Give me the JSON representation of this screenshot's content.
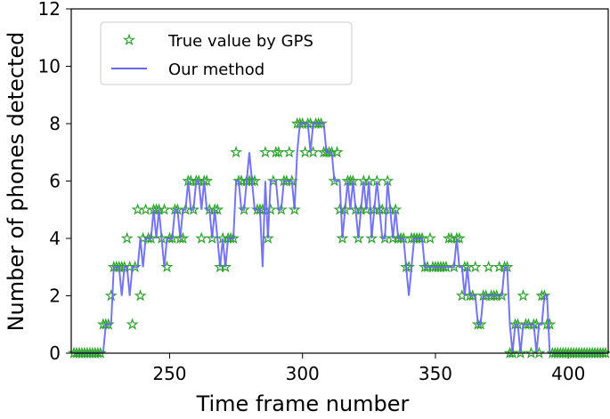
{
  "chart_data": {
    "type": "line",
    "xlabel": "Time frame number",
    "ylabel": "Number of phones detected",
    "x": [
      214,
      215,
      216,
      217,
      218,
      219,
      220,
      221,
      222,
      223,
      224,
      225,
      226,
      227,
      228,
      229,
      230,
      231,
      232,
      233,
      234,
      235,
      236,
      237,
      238,
      239,
      240,
      241,
      242,
      243,
      244,
      245,
      246,
      247,
      248,
      249,
      250,
      251,
      252,
      253,
      254,
      255,
      256,
      257,
      258,
      259,
      260,
      261,
      262,
      263,
      264,
      265,
      266,
      267,
      268,
      269,
      270,
      271,
      272,
      273,
      274,
      275,
      276,
      277,
      278,
      279,
      280,
      281,
      282,
      283,
      284,
      285,
      286,
      287,
      288,
      289,
      290,
      291,
      292,
      293,
      294,
      295,
      296,
      297,
      298,
      299,
      300,
      301,
      302,
      303,
      304,
      305,
      306,
      307,
      308,
      309,
      310,
      311,
      312,
      313,
      314,
      315,
      316,
      317,
      318,
      319,
      320,
      321,
      322,
      323,
      324,
      325,
      326,
      327,
      328,
      329,
      330,
      331,
      332,
      333,
      334,
      335,
      336,
      337,
      338,
      339,
      340,
      341,
      342,
      343,
      344,
      345,
      346,
      347,
      348,
      349,
      350,
      351,
      352,
      353,
      354,
      355,
      356,
      357,
      358,
      359,
      360,
      361,
      362,
      363,
      364,
      365,
      366,
      367,
      368,
      369,
      370,
      371,
      372,
      373,
      374,
      375,
      376,
      377,
      378,
      379,
      380,
      381,
      382,
      383,
      384,
      385,
      386,
      387,
      388,
      389,
      390,
      391,
      392,
      393,
      394,
      395,
      396,
      397,
      398,
      399,
      400,
      401,
      402,
      403,
      404,
      405,
      406,
      407,
      408,
      409,
      410,
      411,
      412,
      413,
      414
    ],
    "series": [
      {
        "name": "True value by GPS",
        "color": "#2ca02c",
        "marker": "star",
        "values": [
          0,
          0,
          0,
          0,
          0,
          0,
          0,
          0,
          0,
          0,
          0,
          1,
          1,
          1,
          2,
          3,
          3,
          3,
          3,
          3,
          4,
          3,
          1,
          3,
          5,
          2,
          4,
          5,
          4,
          4,
          5,
          5,
          5,
          4,
          5,
          3,
          4,
          4,
          5,
          5,
          4,
          4,
          5,
          6,
          6,
          5,
          6,
          6,
          4,
          6,
          6,
          5,
          4,
          5,
          5,
          3,
          4,
          3,
          4,
          4,
          4,
          7,
          6,
          6,
          5,
          6,
          6,
          6,
          6,
          5,
          5,
          5,
          7,
          4,
          5,
          6,
          7,
          7,
          5,
          6,
          6,
          7,
          6,
          5,
          8,
          8,
          8,
          7,
          8,
          8,
          7,
          8,
          8,
          8,
          7,
          7,
          7,
          7,
          6,
          7,
          5,
          4,
          5,
          6,
          6,
          6,
          5,
          4,
          5,
          6,
          5,
          6,
          4,
          5,
          6,
          5,
          5,
          4,
          6,
          5,
          4,
          5,
          4,
          4,
          4,
          3,
          3,
          4,
          4,
          4,
          4,
          4,
          3,
          3,
          4,
          3,
          3,
          3,
          3,
          3,
          3,
          4,
          4,
          3,
          4,
          4,
          2,
          3,
          3,
          2,
          2,
          3,
          1,
          1,
          2,
          2,
          3,
          2,
          2,
          2,
          3,
          2,
          3,
          3,
          0,
          0,
          1,
          1,
          0,
          2,
          1,
          1,
          0,
          1,
          1,
          0,
          2,
          2,
          1,
          1,
          0,
          0,
          0,
          0,
          0,
          0,
          0,
          0,
          0,
          0,
          0,
          0,
          0,
          0,
          0,
          0,
          0,
          0,
          0,
          0,
          0
        ]
      },
      {
        "name": "Our method",
        "color": "#6666ee",
        "marker": "line",
        "values": [
          0,
          0,
          0,
          0,
          0,
          0,
          0,
          0,
          0,
          0,
          0,
          0,
          1,
          1,
          1,
          3,
          3,
          3,
          2,
          3,
          3,
          2,
          3,
          3,
          3,
          4,
          3,
          4,
          4,
          4,
          5,
          4,
          5,
          4,
          3,
          4,
          4,
          4,
          5,
          5,
          4,
          5,
          5,
          6,
          5,
          5,
          6,
          6,
          5,
          6,
          5,
          5,
          4,
          5,
          4,
          3,
          4,
          3,
          4,
          4,
          4,
          6,
          6,
          5,
          5,
          6,
          7,
          6,
          5,
          5,
          5,
          3,
          6,
          4,
          6,
          6,
          6,
          5,
          5,
          6,
          6,
          6,
          6,
          5,
          7,
          8,
          8,
          8,
          8,
          7,
          8,
          8,
          8,
          8,
          8,
          7,
          7,
          7,
          6,
          6,
          6,
          4,
          5,
          6,
          5,
          6,
          5,
          4,
          5,
          6,
          5,
          6,
          4,
          5,
          6,
          5,
          4,
          4,
          6,
          5,
          4,
          5,
          4,
          4,
          4,
          3,
          2,
          3,
          4,
          4,
          4,
          4,
          3,
          3,
          3,
          3,
          3,
          3,
          3,
          3,
          3,
          3,
          3,
          3,
          4,
          3,
          3,
          2,
          3,
          2,
          2,
          2,
          1,
          1,
          2,
          2,
          2,
          2,
          2,
          2,
          2,
          2,
          3,
          3,
          1,
          0,
          1,
          1,
          0,
          1,
          1,
          1,
          1,
          1,
          0,
          1,
          1,
          2,
          2,
          0,
          0,
          0,
          0,
          0,
          0,
          0,
          0,
          0,
          0,
          0,
          0,
          0,
          0,
          0,
          0,
          0,
          0,
          0,
          0,
          0,
          0
        ]
      }
    ],
    "xlim": [
      213,
      415
    ],
    "ylim": [
      0,
      12
    ],
    "xticks": [
      250,
      300,
      350,
      400
    ],
    "yticks": [
      0,
      2,
      4,
      6,
      8,
      10,
      12
    ],
    "legend": "upper left"
  }
}
